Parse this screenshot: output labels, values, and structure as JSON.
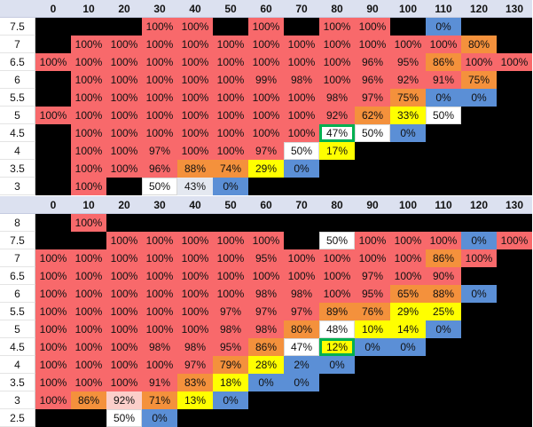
{
  "tables": [
    {
      "columns": [
        "0",
        "10",
        "20",
        "30",
        "40",
        "50",
        "60",
        "70",
        "80",
        "90",
        "100",
        "110",
        "120",
        "130"
      ],
      "highlight": {
        "row": "4.5",
        "column": "80",
        "color": "#00b050"
      },
      "rows": [
        {
          "label": "7.5",
          "cells": [
            null,
            null,
            null,
            "100%",
            "100%",
            null,
            "100%",
            null,
            "100%",
            "100%",
            null,
            "0%",
            null,
            null
          ],
          "fills": [
            "#000000",
            "#000000",
            "#000000",
            "#f8696b",
            "#f8696b",
            "#000000",
            "#f8696b",
            "#000000",
            "#f8696b",
            "#f8696b",
            "#000000",
            "#5b8fd6",
            "#000000",
            "#000000"
          ]
        },
        {
          "label": "7",
          "cells": [
            null,
            "100%",
            "100%",
            "100%",
            "100%",
            "100%",
            "100%",
            "100%",
            "100%",
            "100%",
            "100%",
            "100%",
            "80%",
            null
          ],
          "fills": [
            "#000000",
            "#f8696b",
            "#f8696b",
            "#f8696b",
            "#f8696b",
            "#f8696b",
            "#f8696b",
            "#f8696b",
            "#f8696b",
            "#f8696b",
            "#f8696b",
            "#f8696b",
            "#f4913c",
            "#000000"
          ]
        },
        {
          "label": "6.5",
          "cells": [
            "100%",
            "100%",
            "100%",
            "100%",
            "100%",
            "100%",
            "100%",
            "100%",
            "100%",
            "96%",
            "95%",
            "86%",
            "100%",
            "100%"
          ],
          "fills": [
            "#f8696b",
            "#f8696b",
            "#f8696b",
            "#f8696b",
            "#f8696b",
            "#f8696b",
            "#f8696b",
            "#f8696b",
            "#f8696b",
            "#f8696b",
            "#f8696b",
            "#f4913c",
            "#f8696b",
            "#f8696b"
          ]
        },
        {
          "label": "6",
          "cells": [
            null,
            "100%",
            "100%",
            "100%",
            "100%",
            "100%",
            "99%",
            "98%",
            "100%",
            "96%",
            "92%",
            "91%",
            "75%",
            null
          ],
          "fills": [
            "#000000",
            "#f8696b",
            "#f8696b",
            "#f8696b",
            "#f8696b",
            "#f8696b",
            "#f8696b",
            "#f8696b",
            "#f8696b",
            "#f8696b",
            "#f8696b",
            "#f8696b",
            "#f4913c",
            "#000000"
          ]
        },
        {
          "label": "5.5",
          "cells": [
            null,
            "100%",
            "100%",
            "100%",
            "100%",
            "100%",
            "100%",
            "100%",
            "98%",
            "97%",
            "75%",
            "0%",
            "0%",
            null
          ],
          "fills": [
            "#000000",
            "#f8696b",
            "#f8696b",
            "#f8696b",
            "#f8696b",
            "#f8696b",
            "#f8696b",
            "#f8696b",
            "#f8696b",
            "#f8696b",
            "#f4913c",
            "#5b8fd6",
            "#5b8fd6",
            "#000000"
          ]
        },
        {
          "label": "5",
          "cells": [
            "100%",
            "100%",
            "100%",
            "100%",
            "100%",
            "100%",
            "100%",
            "100%",
            "92%",
            "62%",
            "33%",
            "50%",
            null,
            null
          ],
          "fills": [
            "#f8696b",
            "#f8696b",
            "#f8696b",
            "#f8696b",
            "#f8696b",
            "#f8696b",
            "#f8696b",
            "#f8696b",
            "#f8696b",
            "#f4913c",
            "#ffff00",
            "#ffffff",
            "#000000",
            "#000000"
          ]
        },
        {
          "label": "4.5",
          "cells": [
            null,
            "100%",
            "100%",
            "100%",
            "100%",
            "100%",
            "100%",
            "100%",
            "47%",
            "50%",
            "0%",
            null,
            null,
            null
          ],
          "fills": [
            "#000000",
            "#f8696b",
            "#f8696b",
            "#f8696b",
            "#f8696b",
            "#f8696b",
            "#f8696b",
            "#f8696b",
            "#ffffff",
            "#ffffff",
            "#5b8fd6",
            "#000000",
            "#000000",
            "#000000"
          ]
        },
        {
          "label": "4",
          "cells": [
            null,
            "100%",
            "100%",
            "97%",
            "100%",
            "100%",
            "97%",
            "50%",
            "17%",
            null,
            null,
            null,
            null,
            null
          ],
          "fills": [
            "#000000",
            "#f8696b",
            "#f8696b",
            "#f8696b",
            "#f8696b",
            "#f8696b",
            "#f8696b",
            "#ffffff",
            "#ffff00",
            "#000000",
            "#000000",
            "#000000",
            "#000000",
            "#000000"
          ]
        },
        {
          "label": "3.5",
          "cells": [
            null,
            "100%",
            "100%",
            "96%",
            "88%",
            "74%",
            "29%",
            "0%",
            null,
            null,
            null,
            null,
            null,
            null
          ],
          "fills": [
            "#000000",
            "#f8696b",
            "#f8696b",
            "#f8696b",
            "#f4913c",
            "#f4913c",
            "#ffff00",
            "#5b8fd6",
            "#000000",
            "#000000",
            "#000000",
            "#000000",
            "#000000",
            "#000000"
          ]
        },
        {
          "label": "3",
          "cells": [
            null,
            "100%",
            null,
            "50%",
            "43%",
            "0%",
            null,
            null,
            null,
            null,
            null,
            null,
            null,
            null
          ],
          "fills": [
            "#000000",
            "#f8696b",
            "#000000",
            "#ffffff",
            "#e4e8f0",
            "#5b8fd6",
            "#000000",
            "#000000",
            "#000000",
            "#000000",
            "#000000",
            "#000000",
            "#000000",
            "#000000"
          ]
        }
      ]
    },
    {
      "columns": [
        "0",
        "10",
        "20",
        "30",
        "40",
        "50",
        "60",
        "70",
        "80",
        "90",
        "100",
        "110",
        "120",
        "130"
      ],
      "highlight": {
        "row": "4.5",
        "column": "80",
        "color": "#00b050"
      },
      "rows": [
        {
          "label": "8",
          "cells": [
            null,
            "100%",
            null,
            null,
            null,
            null,
            null,
            null,
            null,
            null,
            null,
            null,
            null,
            null
          ],
          "fills": [
            "#000000",
            "#f8696b",
            "#000000",
            "#000000",
            "#000000",
            "#000000",
            "#000000",
            "#000000",
            "#000000",
            "#000000",
            "#000000",
            "#000000",
            "#000000",
            "#000000"
          ]
        },
        {
          "label": "7.5",
          "cells": [
            null,
            null,
            "100%",
            "100%",
            "100%",
            "100%",
            "100%",
            null,
            "50%",
            "100%",
            "100%",
            "100%",
            "0%",
            "100%"
          ],
          "fills": [
            "#000000",
            "#000000",
            "#f8696b",
            "#f8696b",
            "#f8696b",
            "#f8696b",
            "#f8696b",
            "#000000",
            "#ffffff",
            "#f8696b",
            "#f8696b",
            "#f8696b",
            "#5b8fd6",
            "#f8696b"
          ]
        },
        {
          "label": "7",
          "cells": [
            "100%",
            "100%",
            "100%",
            "100%",
            "100%",
            "100%",
            "95%",
            "100%",
            "100%",
            "100%",
            "100%",
            "86%",
            "100%",
            null
          ],
          "fills": [
            "#f8696b",
            "#f8696b",
            "#f8696b",
            "#f8696b",
            "#f8696b",
            "#f8696b",
            "#f8696b",
            "#f8696b",
            "#f8696b",
            "#f8696b",
            "#f8696b",
            "#f4913c",
            "#f8696b",
            "#000000"
          ]
        },
        {
          "label": "6.5",
          "cells": [
            "100%",
            "100%",
            "100%",
            "100%",
            "100%",
            "100%",
            "100%",
            "100%",
            "100%",
            "97%",
            "100%",
            "90%",
            null,
            null
          ],
          "fills": [
            "#f8696b",
            "#f8696b",
            "#f8696b",
            "#f8696b",
            "#f8696b",
            "#f8696b",
            "#f8696b",
            "#f8696b",
            "#f8696b",
            "#f8696b",
            "#f8696b",
            "#f8696b",
            "#000000",
            "#000000"
          ]
        },
        {
          "label": "6",
          "cells": [
            "100%",
            "100%",
            "100%",
            "100%",
            "100%",
            "100%",
            "98%",
            "98%",
            "100%",
            "95%",
            "65%",
            "88%",
            "0%",
            null
          ],
          "fills": [
            "#f8696b",
            "#f8696b",
            "#f8696b",
            "#f8696b",
            "#f8696b",
            "#f8696b",
            "#f8696b",
            "#f8696b",
            "#f8696b",
            "#f8696b",
            "#f4913c",
            "#f4913c",
            "#5b8fd6",
            "#000000"
          ]
        },
        {
          "label": "5.5",
          "cells": [
            "100%",
            "100%",
            "100%",
            "100%",
            "100%",
            "97%",
            "97%",
            "97%",
            "89%",
            "76%",
            "29%",
            "25%",
            null,
            null
          ],
          "fills": [
            "#f8696b",
            "#f8696b",
            "#f8696b",
            "#f8696b",
            "#f8696b",
            "#f8696b",
            "#f8696b",
            "#f8696b",
            "#f4913c",
            "#f4913c",
            "#ffff00",
            "#ffff00",
            "#000000",
            "#000000"
          ]
        },
        {
          "label": "5",
          "cells": [
            "100%",
            "100%",
            "100%",
            "100%",
            "100%",
            "98%",
            "98%",
            "80%",
            "48%",
            "10%",
            "14%",
            "0%",
            null,
            null
          ],
          "fills": [
            "#f8696b",
            "#f8696b",
            "#f8696b",
            "#f8696b",
            "#f8696b",
            "#f8696b",
            "#f8696b",
            "#f4913c",
            "#ffffff",
            "#ffff00",
            "#ffff00",
            "#5b8fd6",
            "#000000",
            "#000000"
          ]
        },
        {
          "label": "4.5",
          "cells": [
            "100%",
            "100%",
            "100%",
            "98%",
            "98%",
            "95%",
            "86%",
            "47%",
            "12%",
            "0%",
            "0%",
            null,
            null,
            null
          ],
          "fills": [
            "#f8696b",
            "#f8696b",
            "#f8696b",
            "#f8696b",
            "#f8696b",
            "#f8696b",
            "#f4913c",
            "#ffffff",
            "#ffff00",
            "#5b8fd6",
            "#5b8fd6",
            "#000000",
            "#000000",
            "#000000"
          ]
        },
        {
          "label": "4",
          "cells": [
            "100%",
            "100%",
            "100%",
            "100%",
            "97%",
            "79%",
            "28%",
            "2%",
            "0%",
            null,
            null,
            null,
            null,
            null
          ],
          "fills": [
            "#f8696b",
            "#f8696b",
            "#f8696b",
            "#f8696b",
            "#f8696b",
            "#f4913c",
            "#ffff00",
            "#5b8fd6",
            "#5b8fd6",
            "#000000",
            "#000000",
            "#000000",
            "#000000",
            "#000000"
          ]
        },
        {
          "label": "3.5",
          "cells": [
            "100%",
            "100%",
            "100%",
            "91%",
            "83%",
            "18%",
            "0%",
            "0%",
            null,
            null,
            null,
            null,
            null,
            null
          ],
          "fills": [
            "#f8696b",
            "#f8696b",
            "#f8696b",
            "#f8696b",
            "#f4913c",
            "#ffff00",
            "#5b8fd6",
            "#5b8fd6",
            "#000000",
            "#000000",
            "#000000",
            "#000000",
            "#000000",
            "#000000"
          ]
        },
        {
          "label": "3",
          "cells": [
            "100%",
            "86%",
            "92%",
            "71%",
            "13%",
            "0%",
            null,
            null,
            null,
            null,
            null,
            null,
            null,
            null
          ],
          "fills": [
            "#f8696b",
            "#f4913c",
            "#fbcfca",
            "#f4913c",
            "#ffff00",
            "#5b8fd6",
            "#000000",
            "#000000",
            "#000000",
            "#000000",
            "#000000",
            "#000000",
            "#000000",
            "#000000"
          ]
        },
        {
          "label": "2.5",
          "cells": [
            null,
            null,
            "50%",
            "0%",
            null,
            null,
            null,
            null,
            null,
            null,
            null,
            null,
            null,
            null
          ],
          "fills": [
            "#000000",
            "#000000",
            "#ffffff",
            "#5b8fd6",
            "#000000",
            "#000000",
            "#000000",
            "#000000",
            "#000000",
            "#000000",
            "#000000",
            "#000000",
            "#000000",
            "#000000"
          ]
        }
      ]
    }
  ]
}
